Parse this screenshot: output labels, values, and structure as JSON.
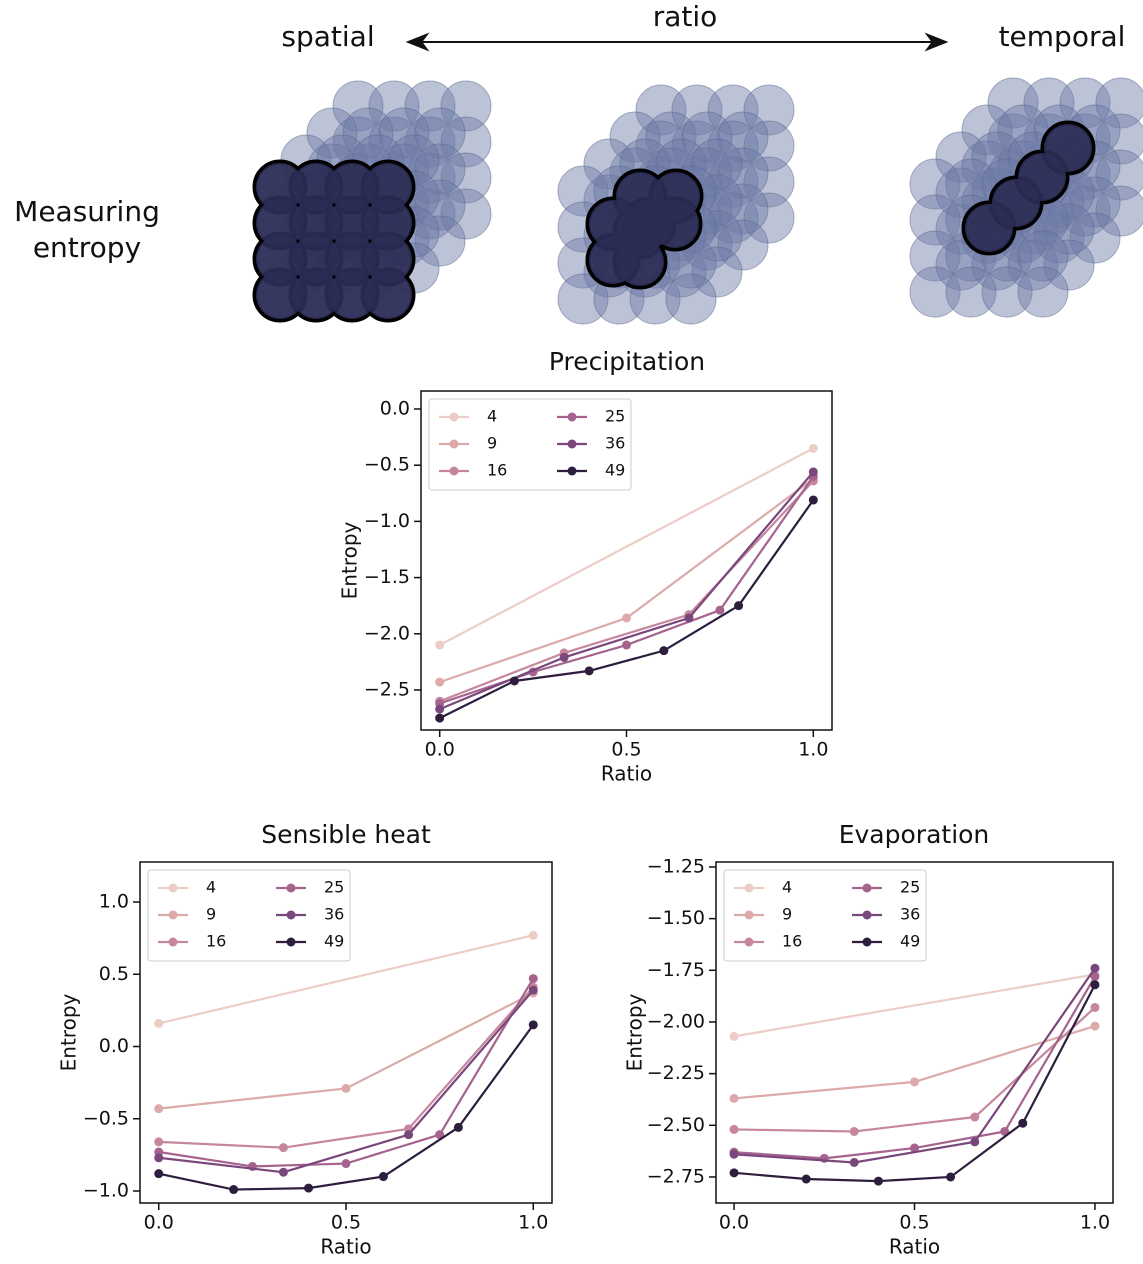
{
  "diagram": {
    "left_label": "spatial",
    "arrow_label": "ratio",
    "right_label": "temporal",
    "row_label": [
      "Measuring",
      "entropy"
    ]
  },
  "chart_data": [
    {
      "type": "line",
      "title": "Precipitation",
      "x_label": "Ratio",
      "y_label": "Entropy",
      "xlim": [
        -0.05,
        1.05
      ],
      "xticks": [
        {
          "value": 0,
          "label": "0.0"
        },
        {
          "value": 0.5,
          "label": "0.5"
        },
        {
          "value": 1,
          "label": "1.0"
        }
      ],
      "ylim": [
        -2.856,
        0.16
      ],
      "yticks": [
        {
          "value": 0,
          "label": "0.0"
        },
        {
          "value": -0.5,
          "label": "−0.5"
        },
        {
          "value": -1,
          "label": "−1.0"
        },
        {
          "value": -1.5,
          "label": "−1.5"
        },
        {
          "value": -2,
          "label": "−2.0"
        },
        {
          "value": -2.5,
          "label": "−2.5"
        }
      ],
      "legend": "upper left",
      "series": [
        {
          "name": "4",
          "color": "#ebcdc6",
          "x": [
            0,
            1
          ],
          "values": [
            -2.1,
            -0.35
          ]
        },
        {
          "name": "9",
          "color": "#dcaaa9",
          "x": [
            0,
            0.5,
            1
          ],
          "values": [
            -2.43,
            -1.86,
            -0.62
          ]
        },
        {
          "name": "16",
          "color": "#c6869d",
          "x": [
            0,
            0.333,
            0.667,
            1
          ],
          "values": [
            -2.6,
            -2.17,
            -1.83,
            -0.64
          ]
        },
        {
          "name": "25",
          "color": "#a5638e",
          "x": [
            0,
            0.25,
            0.5,
            0.75,
            1
          ],
          "values": [
            -2.62,
            -2.34,
            -2.1,
            -1.79,
            -0.6
          ]
        },
        {
          "name": "36",
          "color": "#7a477c",
          "x": [
            0,
            0.333,
            0.667,
            1
          ],
          "values": [
            -2.67,
            -2.21,
            -1.86,
            -0.56
          ]
        },
        {
          "name": "49",
          "color": "#2d1e3e",
          "x": [
            0,
            0.2,
            0.4,
            0.6,
            0.8,
            1
          ],
          "values": [
            -2.75,
            -2.42,
            -2.33,
            -2.15,
            -1.75,
            -0.81
          ]
        }
      ]
    },
    {
      "type": "line",
      "title": "Sensible heat",
      "x_label": "Ratio",
      "y_label": "Entropy",
      "xlim": [
        -0.05,
        1.05
      ],
      "xticks": [
        {
          "value": 0,
          "label": "0.0"
        },
        {
          "value": 0.5,
          "label": "0.5"
        },
        {
          "value": 1,
          "label": "1.0"
        }
      ],
      "ylim": [
        -1.083,
        1.277
      ],
      "yticks": [
        {
          "value": -1,
          "label": "−1.0"
        },
        {
          "value": -0.5,
          "label": "−0.5"
        },
        {
          "value": 0,
          "label": "0.0"
        },
        {
          "value": 0.5,
          "label": "0.5"
        },
        {
          "value": 1,
          "label": "1.0"
        }
      ],
      "legend": "upper left",
      "series": [
        {
          "name": "4",
          "color": "#ebcdc6",
          "x": [
            0,
            1
          ],
          "values": [
            0.16,
            0.77
          ]
        },
        {
          "name": "9",
          "color": "#dcaaa9",
          "x": [
            0,
            0.5,
            1
          ],
          "values": [
            -0.43,
            -0.29,
            0.37
          ]
        },
        {
          "name": "16",
          "color": "#c6869d",
          "x": [
            0,
            0.333,
            0.667,
            1
          ],
          "values": [
            -0.66,
            -0.7,
            -0.57,
            0.41
          ]
        },
        {
          "name": "25",
          "color": "#a5638e",
          "x": [
            0,
            0.25,
            0.5,
            0.75,
            1
          ],
          "values": [
            -0.73,
            -0.83,
            -0.81,
            -0.61,
            0.47
          ]
        },
        {
          "name": "36",
          "color": "#7a477c",
          "x": [
            0,
            0.333,
            0.667,
            1
          ],
          "values": [
            -0.77,
            -0.87,
            -0.61,
            0.39
          ]
        },
        {
          "name": "49",
          "color": "#2d1e3e",
          "x": [
            0,
            0.2,
            0.4,
            0.6,
            0.8,
            1
          ],
          "values": [
            -0.88,
            -0.99,
            -0.98,
            -0.9,
            -0.56,
            0.15
          ]
        }
      ]
    },
    {
      "type": "line",
      "title": "Evaporation",
      "x_label": "Ratio",
      "y_label": "Entropy",
      "xlim": [
        -0.05,
        1.05
      ],
      "xticks": [
        {
          "value": 0,
          "label": "0.0"
        },
        {
          "value": 0.5,
          "label": "0.5"
        },
        {
          "value": 1,
          "label": "1.0"
        }
      ],
      "ylim": [
        -2.876,
        -1.226
      ],
      "yticks": [
        {
          "value": -2.75,
          "label": "−2.75"
        },
        {
          "value": -2.5,
          "label": "−2.50"
        },
        {
          "value": -2.25,
          "label": "−2.25"
        },
        {
          "value": -2,
          "label": "−2.00"
        },
        {
          "value": -1.75,
          "label": "−1.75"
        },
        {
          "value": -1.5,
          "label": "−1.50"
        },
        {
          "value": -1.25,
          "label": "−1.25"
        }
      ],
      "legend": "upper left",
      "series": [
        {
          "name": "4",
          "color": "#ebcdc6",
          "x": [
            0,
            1
          ],
          "values": [
            -2.07,
            -1.77
          ]
        },
        {
          "name": "9",
          "color": "#dcaaa9",
          "x": [
            0,
            0.5,
            1
          ],
          "values": [
            -2.37,
            -2.29,
            -2.02
          ]
        },
        {
          "name": "16",
          "color": "#c6869d",
          "x": [
            0,
            0.333,
            0.667,
            1
          ],
          "values": [
            -2.52,
            -2.53,
            -2.46,
            -1.93
          ]
        },
        {
          "name": "25",
          "color": "#a5638e",
          "x": [
            0,
            0.25,
            0.5,
            0.75,
            1
          ],
          "values": [
            -2.63,
            -2.66,
            -2.61,
            -2.53,
            -1.78
          ]
        },
        {
          "name": "36",
          "color": "#7a477c",
          "x": [
            0,
            0.333,
            0.667,
            1
          ],
          "values": [
            -2.64,
            -2.68,
            -2.58,
            -1.74
          ]
        },
        {
          "name": "49",
          "color": "#2d1e3e",
          "x": [
            0,
            0.2,
            0.4,
            0.6,
            0.8,
            1
          ],
          "values": [
            -2.73,
            -2.76,
            -2.77,
            -2.75,
            -2.49,
            -1.82
          ]
        }
      ]
    }
  ]
}
